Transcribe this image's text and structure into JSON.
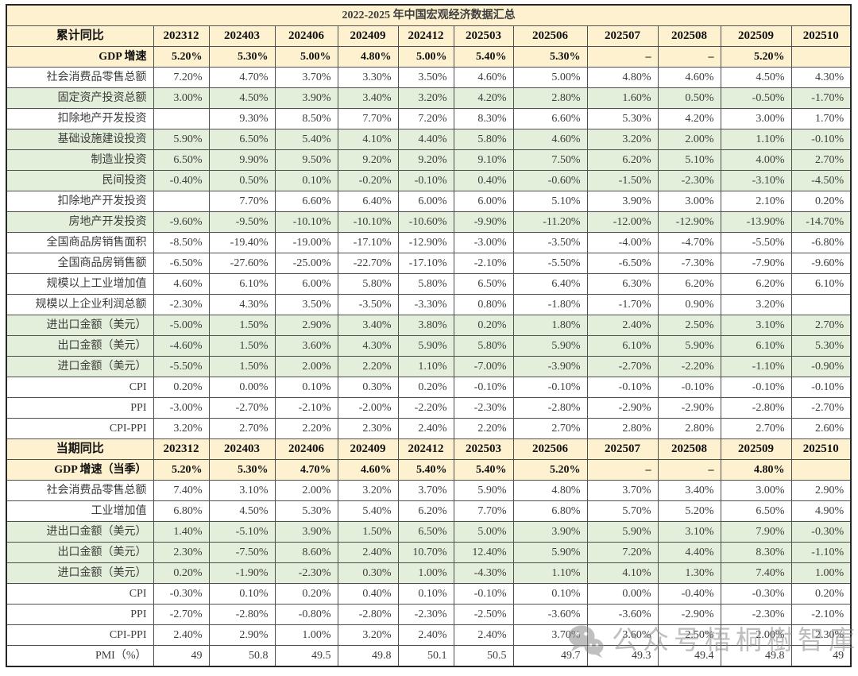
{
  "chart_data": {
    "type": "table",
    "title": "2022-2025 年中国宏观经济数据汇总",
    "period_columns": [
      "202312",
      "202403",
      "202406",
      "202409",
      "202412",
      "202503",
      "202506",
      "202507",
      "202508",
      "202509",
      "202510"
    ],
    "sections": [
      {
        "name": "累计同比",
        "rows": [
          {
            "label": "GDP 增速",
            "bg": "cream",
            "bold": true,
            "values": [
              "5.20%",
              "5.30%",
              "5.00%",
              "4.80%",
              "5.00%",
              "5.40%",
              "5.30%",
              "–",
              "–",
              "5.20%",
              ""
            ]
          },
          {
            "label": "社会消费品零售总额",
            "bg": "white",
            "bold": false,
            "values": [
              "7.20%",
              "4.70%",
              "3.70%",
              "3.30%",
              "3.50%",
              "4.60%",
              "5.00%",
              "4.80%",
              "4.60%",
              "4.50%",
              "4.30%"
            ]
          },
          {
            "label": "固定资产投资总额",
            "bg": "green",
            "bold": false,
            "values": [
              "3.00%",
              "4.50%",
              "3.90%",
              "3.40%",
              "3.20%",
              "4.20%",
              "2.80%",
              "1.60%",
              "0.50%",
              "-0.50%",
              "-1.70%"
            ]
          },
          {
            "label": "扣除地产开发投资",
            "bg": "white",
            "bold": false,
            "values": [
              "",
              "9.30%",
              "8.50%",
              "7.70%",
              "7.20%",
              "8.30%",
              "6.60%",
              "5.30%",
              "4.20%",
              "3.00%",
              "1.70%"
            ]
          },
          {
            "label": "基础设施建设投资",
            "bg": "green",
            "bold": false,
            "values": [
              "5.90%",
              "6.50%",
              "5.40%",
              "4.10%",
              "4.40%",
              "5.80%",
              "4.60%",
              "3.20%",
              "2.00%",
              "1.10%",
              "-0.10%"
            ]
          },
          {
            "label": "制造业投资",
            "bg": "green",
            "bold": false,
            "values": [
              "6.50%",
              "9.90%",
              "9.50%",
              "9.20%",
              "9.20%",
              "9.10%",
              "7.50%",
              "6.20%",
              "5.10%",
              "4.00%",
              "2.70%"
            ]
          },
          {
            "label": "民间投资",
            "bg": "green",
            "bold": false,
            "values": [
              "-0.40%",
              "0.50%",
              "0.10%",
              "-0.20%",
              "-0.10%",
              "0.40%",
              "-0.60%",
              "-1.50%",
              "-2.30%",
              "-3.10%",
              "-4.50%"
            ]
          },
          {
            "label": "扣除地产开发投资",
            "bg": "white",
            "bold": false,
            "values": [
              "",
              "7.70%",
              "6.60%",
              "6.40%",
              "6.00%",
              "6.00%",
              "5.10%",
              "3.90%",
              "3.00%",
              "2.10%",
              "0.20%"
            ]
          },
          {
            "label": "房地产开发投资",
            "bg": "green",
            "bold": false,
            "values": [
              "-9.60%",
              "-9.50%",
              "-10.10%",
              "-10.10%",
              "-10.60%",
              "-9.90%",
              "-11.20%",
              "-12.00%",
              "-12.90%",
              "-13.90%",
              "-14.70%"
            ]
          },
          {
            "label": "全国商品房销售面积",
            "bg": "white",
            "bold": false,
            "values": [
              "-8.50%",
              "-19.40%",
              "-19.00%",
              "-17.10%",
              "-12.90%",
              "-3.00%",
              "-3.50%",
              "-4.00%",
              "-4.70%",
              "-5.50%",
              "-6.80%"
            ]
          },
          {
            "label": "全国商品房销售额",
            "bg": "white",
            "bold": false,
            "values": [
              "-6.50%",
              "-27.60%",
              "-25.00%",
              "-22.70%",
              "-17.10%",
              "-2.10%",
              "-5.50%",
              "-6.50%",
              "-7.30%",
              "-7.90%",
              "-9.60%"
            ]
          },
          {
            "label": "规模以上工业增加值",
            "bg": "white",
            "bold": false,
            "values": [
              "4.60%",
              "6.10%",
              "6.00%",
              "5.80%",
              "5.80%",
              "6.50%",
              "6.40%",
              "6.30%",
              "6.20%",
              "6.20%",
              "6.10%"
            ]
          },
          {
            "label": "规模以上企业利润总额",
            "bg": "white",
            "bold": false,
            "values": [
              "-2.30%",
              "4.30%",
              "3.50%",
              "-3.50%",
              "-3.30%",
              "0.80%",
              "-1.80%",
              "-1.70%",
              "0.90%",
              "3.20%",
              ""
            ]
          },
          {
            "label": "进出口金额（美元）",
            "bg": "green",
            "bold": false,
            "values": [
              "-5.00%",
              "1.50%",
              "2.90%",
              "3.40%",
              "3.80%",
              "0.20%",
              "1.80%",
              "2.40%",
              "2.50%",
              "3.10%",
              "2.70%"
            ]
          },
          {
            "label": "出口金额（美元）",
            "bg": "green",
            "bold": false,
            "values": [
              "-4.60%",
              "1.50%",
              "3.60%",
              "4.30%",
              "5.90%",
              "5.80%",
              "5.90%",
              "6.10%",
              "5.90%",
              "6.10%",
              "5.30%"
            ]
          },
          {
            "label": "进口金额（美元）",
            "bg": "green",
            "bold": false,
            "values": [
              "-5.50%",
              "1.50%",
              "2.00%",
              "2.20%",
              "1.10%",
              "-7.00%",
              "-3.90%",
              "-2.70%",
              "-2.20%",
              "-1.10%",
              "-0.90%"
            ]
          },
          {
            "label": "CPI",
            "bg": "white",
            "bold": false,
            "values": [
              "0.20%",
              "0.00%",
              "0.10%",
              "0.30%",
              "0.20%",
              "-0.10%",
              "-0.10%",
              "-0.10%",
              "-0.10%",
              "-0.10%",
              "-0.10%"
            ]
          },
          {
            "label": "PPI",
            "bg": "white",
            "bold": false,
            "values": [
              "-3.00%",
              "-2.70%",
              "-2.10%",
              "-2.00%",
              "-2.20%",
              "-2.30%",
              "-2.80%",
              "-2.90%",
              "-2.90%",
              "-2.80%",
              "-2.70%"
            ]
          },
          {
            "label": "CPI-PPI",
            "bg": "white",
            "bold": false,
            "values": [
              "3.20%",
              "2.70%",
              "2.20%",
              "2.30%",
              "2.40%",
              "2.20%",
              "2.70%",
              "2.80%",
              "2.80%",
              "2.70%",
              "2.60%"
            ]
          }
        ]
      },
      {
        "name": "当期同比",
        "rows": [
          {
            "label": "GDP 增速（当季）",
            "bg": "cream",
            "bold": true,
            "values": [
              "5.20%",
              "5.30%",
              "4.70%",
              "4.60%",
              "5.40%",
              "5.40%",
              "5.20%",
              "–",
              "–",
              "4.80%",
              ""
            ]
          },
          {
            "label": "社会消费品零售总额",
            "bg": "white",
            "bold": false,
            "values": [
              "7.40%",
              "3.10%",
              "2.00%",
              "3.20%",
              "3.70%",
              "5.90%",
              "4.80%",
              "3.70%",
              "3.40%",
              "3.00%",
              "2.90%"
            ]
          },
          {
            "label": "工业增加值",
            "bg": "white",
            "bold": false,
            "values": [
              "6.80%",
              "4.50%",
              "5.30%",
              "5.40%",
              "6.20%",
              "7.70%",
              "6.80%",
              "5.70%",
              "5.20%",
              "6.50%",
              "4.90%"
            ]
          },
          {
            "label": "进出口金额（美元）",
            "bg": "green",
            "bold": false,
            "values": [
              "1.40%",
              "-5.10%",
              "3.90%",
              "1.50%",
              "6.50%",
              "5.00%",
              "3.90%",
              "5.90%",
              "3.10%",
              "7.90%",
              "-0.30%"
            ]
          },
          {
            "label": "出口金额（美元）",
            "bg": "green",
            "bold": false,
            "values": [
              "2.30%",
              "-7.50%",
              "8.60%",
              "2.40%",
              "10.70%",
              "12.40%",
              "5.90%",
              "7.20%",
              "4.40%",
              "8.30%",
              "-1.10%"
            ]
          },
          {
            "label": "进口金额（美元）",
            "bg": "green",
            "bold": false,
            "values": [
              "0.20%",
              "-1.90%",
              "-2.30%",
              "0.30%",
              "1.00%",
              "-4.30%",
              "1.10%",
              "4.10%",
              "1.30%",
              "7.40%",
              "1.00%"
            ]
          },
          {
            "label": "CPI",
            "bg": "white",
            "bold": false,
            "values": [
              "-0.30%",
              "0.10%",
              "0.20%",
              "0.40%",
              "0.10%",
              "-0.10%",
              "0.10%",
              "0.00%",
              "-0.40%",
              "-0.30%",
              "0.20%"
            ]
          },
          {
            "label": "PPI",
            "bg": "white",
            "bold": false,
            "values": [
              "-2.70%",
              "-2.80%",
              "-0.80%",
              "-2.80%",
              "-2.30%",
              "-2.50%",
              "-3.60%",
              "-3.60%",
              "-2.90%",
              "-2.30%",
              "-2.10%"
            ]
          },
          {
            "label": "CPI-PPI",
            "bg": "white",
            "bold": false,
            "values": [
              "2.40%",
              "2.90%",
              "1.00%",
              "3.20%",
              "2.40%",
              "2.40%",
              "3.70%",
              "3.60%",
              "2.50%",
              "2.00%",
              "2.30%"
            ]
          },
          {
            "label": "PMI（%）",
            "bg": "white",
            "bold": false,
            "values": [
              "49",
              "50.8",
              "49.5",
              "49.8",
              "50.1",
              "50.5",
              "49.7",
              "49.3",
              "49.4",
              "49.8",
              "49"
            ]
          }
        ]
      }
    ],
    "layout_hints": {
      "grid": true,
      "negative_values_in_red": true,
      "dash_means_not_released": "–",
      "empty_means_no_data": ""
    }
  },
  "watermark": {
    "text": "公众号梧桐樹智庫",
    "icon": "wechat-icon"
  },
  "colors": {
    "header_bg": "#FDF1D0",
    "green_row_bg": "#E3EFDA",
    "white_row_bg": "#FFFFFF",
    "negative_text": "#FE0B0B",
    "normal_text": "#3D3D3D",
    "border": "#4F4F4F"
  }
}
